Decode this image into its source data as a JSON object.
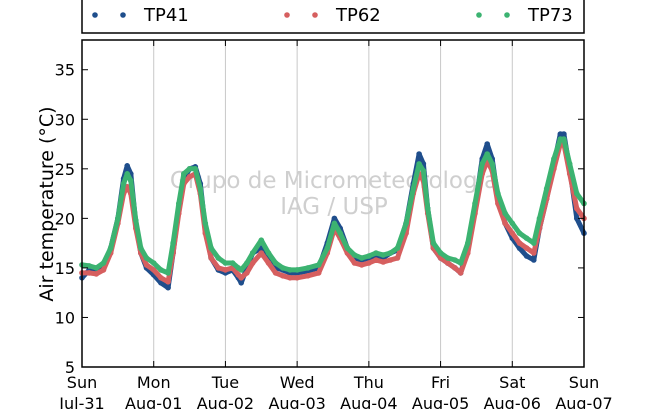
{
  "chart_data": {
    "type": "line",
    "ylabel": "Air temperature (°C)",
    "xlabel": "",
    "title": "",
    "ylim": [
      5,
      38
    ],
    "yticks": [
      5,
      10,
      15,
      20,
      25,
      30,
      35
    ],
    "xlim": [
      0,
      7
    ],
    "xticks": [
      {
        "x": 0,
        "day": "Sun",
        "date": "Jul-31"
      },
      {
        "x": 1,
        "day": "Mon",
        "date": "Aug-01"
      },
      {
        "x": 2,
        "day": "Tue",
        "date": "Aug-02"
      },
      {
        "x": 3,
        "day": "Wed",
        "date": "Aug-03"
      },
      {
        "x": 4,
        "day": "Thu",
        "date": "Aug-04"
      },
      {
        "x": 5,
        "day": "Fri",
        "date": "Aug-05"
      },
      {
        "x": 6,
        "day": "Sat",
        "date": "Aug-06"
      },
      {
        "x": 7,
        "day": "Sun",
        "date": "Aug-07"
      }
    ],
    "grid": "vertical",
    "legend_position": "top",
    "watermark": [
      "Grupo de Micrometeorologia",
      "IAG / USP"
    ],
    "series": [
      {
        "name": "TP41",
        "color": "#1f4e8c",
        "points": [
          [
            0.0,
            14.0
          ],
          [
            0.1,
            14.8
          ],
          [
            0.2,
            14.6
          ],
          [
            0.3,
            15.2
          ],
          [
            0.4,
            17.0
          ],
          [
            0.5,
            20.0
          ],
          [
            0.58,
            24.0
          ],
          [
            0.63,
            25.3
          ],
          [
            0.68,
            24.5
          ],
          [
            0.75,
            19.5
          ],
          [
            0.82,
            16.5
          ],
          [
            0.9,
            15.0
          ],
          [
            1.0,
            14.3
          ],
          [
            1.1,
            13.5
          ],
          [
            1.2,
            13.0
          ],
          [
            1.27,
            16.5
          ],
          [
            1.35,
            21.0
          ],
          [
            1.42,
            24.0
          ],
          [
            1.5,
            25.0
          ],
          [
            1.58,
            25.2
          ],
          [
            1.65,
            23.5
          ],
          [
            1.72,
            19.0
          ],
          [
            1.8,
            16.0
          ],
          [
            1.9,
            14.8
          ],
          [
            2.0,
            14.5
          ],
          [
            2.1,
            14.8
          ],
          [
            2.18,
            14.0
          ],
          [
            2.22,
            13.5
          ],
          [
            2.3,
            15.0
          ],
          [
            2.38,
            16.5
          ],
          [
            2.5,
            17.0
          ],
          [
            2.6,
            16.0
          ],
          [
            2.7,
            15.0
          ],
          [
            2.8,
            14.8
          ],
          [
            2.9,
            14.5
          ],
          [
            3.0,
            14.5
          ],
          [
            3.15,
            14.7
          ],
          [
            3.3,
            15.0
          ],
          [
            3.42,
            17.5
          ],
          [
            3.52,
            20.0
          ],
          [
            3.6,
            19.0
          ],
          [
            3.7,
            17.0
          ],
          [
            3.8,
            16.0
          ],
          [
            3.9,
            15.8
          ],
          [
            4.0,
            16.0
          ],
          [
            4.1,
            16.2
          ],
          [
            4.2,
            16.0
          ],
          [
            4.3,
            16.5
          ],
          [
            4.4,
            16.8
          ],
          [
            4.52,
            19.5
          ],
          [
            4.62,
            23.5
          ],
          [
            4.7,
            26.5
          ],
          [
            4.76,
            25.5
          ],
          [
            4.82,
            21.0
          ],
          [
            4.9,
            17.0
          ],
          [
            5.0,
            16.0
          ],
          [
            5.1,
            15.5
          ],
          [
            5.2,
            15.0
          ],
          [
            5.28,
            14.5
          ],
          [
            5.38,
            17.0
          ],
          [
            5.48,
            21.0
          ],
          [
            5.58,
            26.0
          ],
          [
            5.65,
            27.5
          ],
          [
            5.72,
            26.0
          ],
          [
            5.8,
            22.0
          ],
          [
            5.9,
            19.5
          ],
          [
            6.0,
            18.0
          ],
          [
            6.1,
            17.0
          ],
          [
            6.2,
            16.2
          ],
          [
            6.3,
            15.8
          ],
          [
            6.38,
            19.0
          ],
          [
            6.48,
            22.0
          ],
          [
            6.58,
            25.5
          ],
          [
            6.67,
            28.5
          ],
          [
            6.72,
            28.5
          ],
          [
            6.8,
            25.0
          ],
          [
            6.9,
            20.0
          ],
          [
            7.0,
            18.5
          ]
        ]
      },
      {
        "name": "TP62",
        "color": "#d65f5f",
        "points": [
          [
            0.0,
            14.5
          ],
          [
            0.1,
            14.5
          ],
          [
            0.2,
            14.4
          ],
          [
            0.3,
            14.8
          ],
          [
            0.4,
            16.5
          ],
          [
            0.5,
            19.5
          ],
          [
            0.58,
            22.5
          ],
          [
            0.63,
            23.2
          ],
          [
            0.68,
            22.5
          ],
          [
            0.75,
            19.0
          ],
          [
            0.82,
            16.5
          ],
          [
            0.9,
            15.3
          ],
          [
            1.0,
            14.8
          ],
          [
            1.1,
            14.0
          ],
          [
            1.2,
            13.6
          ],
          [
            1.27,
            16.5
          ],
          [
            1.35,
            20.5
          ],
          [
            1.42,
            23.5
          ],
          [
            1.5,
            24.2
          ],
          [
            1.58,
            24.5
          ],
          [
            1.65,
            22.5
          ],
          [
            1.72,
            18.5
          ],
          [
            1.8,
            16.0
          ],
          [
            1.9,
            15.0
          ],
          [
            2.0,
            14.8
          ],
          [
            2.1,
            15.0
          ],
          [
            2.18,
            14.3
          ],
          [
            2.22,
            14.0
          ],
          [
            2.3,
            14.5
          ],
          [
            2.38,
            15.5
          ],
          [
            2.5,
            16.5
          ],
          [
            2.6,
            15.5
          ],
          [
            2.7,
            14.5
          ],
          [
            2.8,
            14.2
          ],
          [
            2.9,
            14.0
          ],
          [
            3.0,
            14.0
          ],
          [
            3.15,
            14.2
          ],
          [
            3.3,
            14.5
          ],
          [
            3.42,
            16.5
          ],
          [
            3.52,
            19.0
          ],
          [
            3.6,
            18.0
          ],
          [
            3.7,
            16.5
          ],
          [
            3.8,
            15.5
          ],
          [
            3.9,
            15.3
          ],
          [
            4.0,
            15.5
          ],
          [
            4.1,
            15.8
          ],
          [
            4.2,
            15.6
          ],
          [
            4.3,
            15.8
          ],
          [
            4.4,
            16.0
          ],
          [
            4.52,
            18.5
          ],
          [
            4.62,
            22.5
          ],
          [
            4.7,
            24.5
          ],
          [
            4.76,
            23.8
          ],
          [
            4.82,
            20.5
          ],
          [
            4.9,
            17.0
          ],
          [
            5.0,
            16.0
          ],
          [
            5.1,
            15.5
          ],
          [
            5.2,
            15.0
          ],
          [
            5.28,
            14.5
          ],
          [
            5.38,
            16.5
          ],
          [
            5.48,
            20.5
          ],
          [
            5.58,
            24.5
          ],
          [
            5.65,
            25.8
          ],
          [
            5.72,
            24.8
          ],
          [
            5.8,
            21.5
          ],
          [
            5.9,
            19.5
          ],
          [
            6.0,
            18.5
          ],
          [
            6.1,
            17.5
          ],
          [
            6.2,
            17.0
          ],
          [
            6.3,
            16.5
          ],
          [
            6.38,
            19.0
          ],
          [
            6.48,
            22.0
          ],
          [
            6.58,
            25.0
          ],
          [
            6.67,
            27.5
          ],
          [
            6.72,
            27.5
          ],
          [
            6.8,
            24.5
          ],
          [
            6.9,
            21.0
          ],
          [
            7.0,
            20.0
          ]
        ]
      },
      {
        "name": "TP73",
        "color": "#3cb371",
        "points": [
          [
            0.0,
            15.3
          ],
          [
            0.1,
            15.2
          ],
          [
            0.2,
            15.0
          ],
          [
            0.3,
            15.5
          ],
          [
            0.4,
            17.0
          ],
          [
            0.5,
            20.0
          ],
          [
            0.58,
            23.5
          ],
          [
            0.63,
            24.5
          ],
          [
            0.68,
            23.8
          ],
          [
            0.75,
            19.8
          ],
          [
            0.82,
            17.0
          ],
          [
            0.9,
            16.0
          ],
          [
            1.0,
            15.5
          ],
          [
            1.1,
            14.8
          ],
          [
            1.2,
            14.5
          ],
          [
            1.27,
            17.5
          ],
          [
            1.35,
            21.5
          ],
          [
            1.42,
            24.5
          ],
          [
            1.5,
            25.0
          ],
          [
            1.58,
            25.0
          ],
          [
            1.65,
            23.0
          ],
          [
            1.72,
            19.5
          ],
          [
            1.8,
            17.0
          ],
          [
            1.9,
            16.0
          ],
          [
            2.0,
            15.5
          ],
          [
            2.1,
            15.5
          ],
          [
            2.18,
            15.0
          ],
          [
            2.22,
            14.8
          ],
          [
            2.3,
            15.5
          ],
          [
            2.38,
            16.5
          ],
          [
            2.5,
            17.8
          ],
          [
            2.6,
            16.5
          ],
          [
            2.7,
            15.5
          ],
          [
            2.8,
            15.0
          ],
          [
            2.9,
            14.8
          ],
          [
            3.0,
            14.8
          ],
          [
            3.15,
            15.0
          ],
          [
            3.3,
            15.3
          ],
          [
            3.42,
            17.0
          ],
          [
            3.52,
            19.5
          ],
          [
            3.6,
            18.5
          ],
          [
            3.7,
            17.0
          ],
          [
            3.8,
            16.3
          ],
          [
            3.9,
            16.0
          ],
          [
            4.0,
            16.2
          ],
          [
            4.1,
            16.5
          ],
          [
            4.2,
            16.3
          ],
          [
            4.3,
            16.5
          ],
          [
            4.4,
            17.0
          ],
          [
            4.52,
            19.5
          ],
          [
            4.62,
            23.0
          ],
          [
            4.7,
            25.5
          ],
          [
            4.76,
            24.8
          ],
          [
            4.82,
            21.0
          ],
          [
            4.9,
            17.5
          ],
          [
            5.0,
            16.5
          ],
          [
            5.1,
            16.0
          ],
          [
            5.2,
            15.8
          ],
          [
            5.28,
            15.5
          ],
          [
            5.38,
            17.5
          ],
          [
            5.48,
            21.5
          ],
          [
            5.58,
            25.5
          ],
          [
            5.65,
            26.5
          ],
          [
            5.72,
            25.5
          ],
          [
            5.8,
            22.5
          ],
          [
            5.9,
            20.5
          ],
          [
            6.0,
            19.5
          ],
          [
            6.1,
            18.5
          ],
          [
            6.2,
            18.0
          ],
          [
            6.3,
            17.5
          ],
          [
            6.38,
            20.0
          ],
          [
            6.48,
            23.0
          ],
          [
            6.58,
            26.0
          ],
          [
            6.67,
            28.0
          ],
          [
            6.72,
            28.0
          ],
          [
            6.8,
            25.5
          ],
          [
            6.9,
            22.5
          ],
          [
            7.0,
            21.5
          ]
        ]
      }
    ]
  }
}
